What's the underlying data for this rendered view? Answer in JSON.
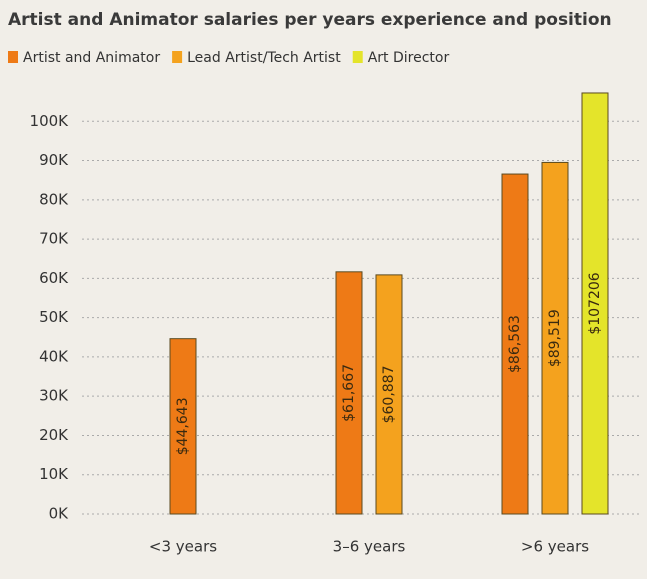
{
  "chart_data": {
    "type": "bar",
    "title": "Artist and Animator salaries per years experience and position",
    "categories": [
      "<3 years",
      "3–6 years",
      ">6 years"
    ],
    "series": [
      {
        "name": "Artist and Animator",
        "color": "#ee7a16",
        "values": [
          44643,
          61667,
          86563
        ],
        "value_labels": [
          "$44,643",
          "$61,667",
          "$86,563"
        ]
      },
      {
        "name": "Lead Artist/Tech Artist",
        "color": "#f4a21e",
        "values": [
          null,
          60887,
          89519
        ],
        "value_labels": [
          null,
          "$60,887",
          "$89,519"
        ]
      },
      {
        "name": "Art Director",
        "color": "#e4e42a",
        "values": [
          null,
          null,
          107206
        ],
        "value_labels": [
          null,
          null,
          "$107206"
        ]
      }
    ],
    "ylim": [
      0,
      110000
    ],
    "yticks": [
      {
        "value": 0,
        "label": "0K"
      },
      {
        "value": 10000,
        "label": "10K"
      },
      {
        "value": 20000,
        "label": "20K"
      },
      {
        "value": 30000,
        "label": "30K"
      },
      {
        "value": 40000,
        "label": "40K"
      },
      {
        "value": 50000,
        "label": "50K"
      },
      {
        "value": 60000,
        "label": "60K"
      },
      {
        "value": 70000,
        "label": "70K"
      },
      {
        "value": 80000,
        "label": "80K"
      },
      {
        "value": 90000,
        "label": "90K"
      },
      {
        "value": 100000,
        "label": "100K"
      }
    ],
    "grid": true,
    "legend": "top"
  }
}
